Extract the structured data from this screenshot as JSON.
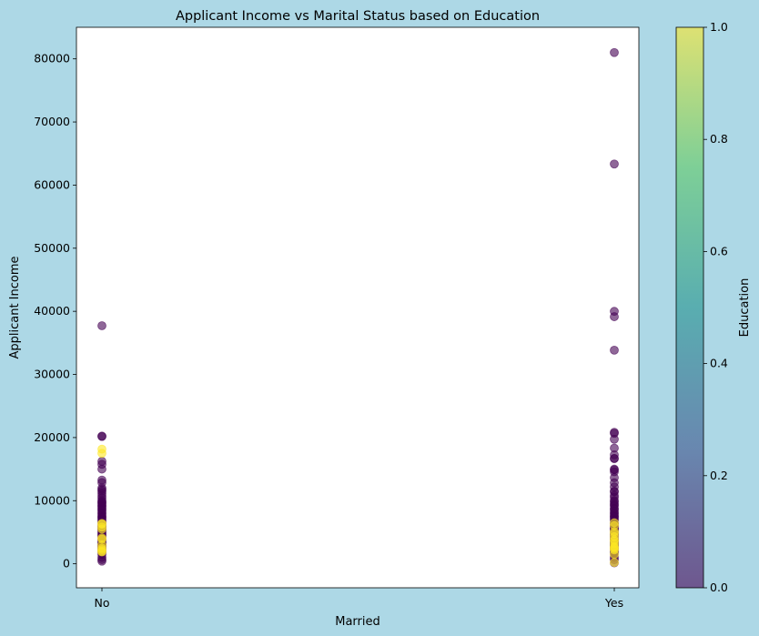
{
  "chart_data": {
    "type": "scatter",
    "title": "Applicant Income vs Marital Status based on Education",
    "xlabel": "Married",
    "ylabel": "Applicant Income",
    "categories": [
      "No",
      "Yes"
    ],
    "ylim": [
      -3800,
      85000
    ],
    "yticks": [
      0,
      10000,
      20000,
      30000,
      40000,
      50000,
      60000,
      70000,
      80000
    ],
    "colorbar": {
      "label": "Education",
      "range": [
        0.0,
        1.0
      ],
      "ticks": [
        "0.0",
        "0.2",
        "0.4",
        "0.6",
        "0.8",
        "1.0"
      ],
      "colors": [
        "#440154",
        "#3b528b",
        "#21918c",
        "#5ec962",
        "#fde725"
      ]
    },
    "point_alpha": 0.6,
    "series": [
      {
        "category": "No",
        "education": 0,
        "values": [
          37719,
          20233,
          20166,
          16250,
          15759,
          14999,
          13262,
          12876,
          12000,
          11757,
          11500,
          11146,
          10750,
          10408,
          10047,
          9833,
          9703,
          9560,
          9323,
          9166,
          8999,
          8750,
          8566,
          8333,
          8080,
          7933,
          7660,
          7451,
          7333,
          7167,
          6950,
          6700,
          6500,
          6277,
          6000,
          5800,
          5700,
          5500,
          5417,
          5250,
          5000,
          4750,
          4583,
          4400,
          4166,
          3900,
          3750,
          3500,
          3333,
          3200,
          3000,
          2900,
          2750,
          2500,
          2333,
          2000,
          1800,
          1500,
          1000,
          674,
          416
        ]
      },
      {
        "category": "No",
        "education": 1,
        "values": [
          18165,
          17500,
          6400,
          6277,
          5818,
          5500,
          4100,
          3900,
          3000,
          2500,
          2253,
          2001,
          1875
        ]
      },
      {
        "category": "Yes",
        "education": 0,
        "values": [
          81000,
          63337,
          39999,
          39147,
          33846,
          20833,
          20667,
          19730,
          18333,
          17263,
          16692,
          16666,
          15000,
          14880,
          14583,
          13650,
          12841,
          12173,
          11500,
          11417,
          10833,
          10513,
          10000,
          9833,
          9538,
          9328,
          9166,
          8750,
          8666,
          8333,
          8072,
          7933,
          7660,
          7500,
          7333,
          7100,
          6875,
          6500,
          6325,
          6000,
          5833,
          5700,
          5500,
          5417,
          5250,
          5000,
          4750,
          4583,
          4400,
          4166,
          3900,
          3750,
          3500,
          3333,
          3200,
          3000,
          2900,
          2750,
          2500,
          2333,
          2000,
          1800,
          1500,
          1000,
          645,
          150
        ]
      },
      {
        "category": "Yes",
        "education": 1,
        "values": [
          6500,
          6050,
          5100,
          4800,
          4300,
          3800,
          3600,
          3200,
          2750,
          2600,
          2400,
          2200,
          1500,
          210
        ]
      }
    ]
  }
}
